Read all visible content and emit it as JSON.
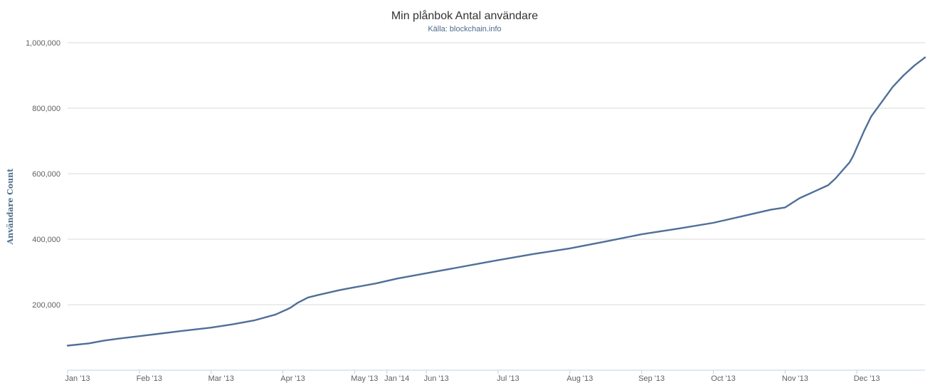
{
  "chart_data": {
    "type": "line",
    "title": "Min plånbok Antal användare",
    "subtitle": "Källa: blockchain.info",
    "xlabel": "",
    "ylabel": "Användare Count",
    "ylim": [
      0,
      1000000
    ],
    "yticks": [
      200000,
      400000,
      600000,
      800000,
      1000000
    ],
    "ytick_labels": [
      "200,000",
      "400,000",
      "600,000",
      "800,000",
      "1,000,000"
    ],
    "x_unit": "month of 2013",
    "xlim": [
      0,
      11.95
    ],
    "xticks": [
      {
        "label": "Jan '13",
        "value": 0
      },
      {
        "label": "Feb '13",
        "value": 1
      },
      {
        "label": "Mar '13",
        "value": 2
      },
      {
        "label": "Apr '13",
        "value": 3
      },
      {
        "label": "May '13",
        "value": 4
      },
      {
        "label": "Jan '14",
        "value": 4.45
      },
      {
        "label": "Jun '13",
        "value": 5
      },
      {
        "label": "Jul '13",
        "value": 6
      },
      {
        "label": "Aug '13",
        "value": 7
      },
      {
        "label": "Sep '13",
        "value": 8
      },
      {
        "label": "Oct '13",
        "value": 9
      },
      {
        "label": "Nov '13",
        "value": 10
      },
      {
        "label": "Dec '13",
        "value": 11
      }
    ],
    "grid": true,
    "legend": "none",
    "colors": {
      "series": "#4f6f98",
      "title": "#333333",
      "subtitle": "#4d6b8a",
      "axis_title": "#4d6b8a"
    },
    "series": [
      {
        "x": [
          0,
          0.3,
          0.5,
          0.7,
          1,
          1.3,
          1.6,
          2,
          2.3,
          2.6,
          2.9,
          3.1,
          3.2,
          3.35,
          3.5,
          3.8,
          4,
          4.3,
          4.6,
          5,
          5.4,
          5.8,
          6,
          6.5,
          7,
          7.5,
          8,
          8.5,
          9,
          9.4,
          9.8,
          10,
          10.2,
          10.4,
          10.6,
          10.7,
          10.8,
          10.9,
          10.95,
          11,
          11.1,
          11.2,
          11.3,
          11.4,
          11.5,
          11.65,
          11.8,
          11.95
        ],
        "y": [
          75000,
          82000,
          90000,
          96000,
          104000,
          112000,
          120000,
          130000,
          140000,
          152000,
          170000,
          190000,
          205000,
          222000,
          230000,
          245000,
          253000,
          265000,
          280000,
          296000,
          312000,
          328000,
          336000,
          355000,
          372000,
          393000,
          415000,
          432000,
          450000,
          470000,
          490000,
          497000,
          525000,
          545000,
          565000,
          585000,
          610000,
          635000,
          655000,
          680000,
          730000,
          775000,
          805000,
          835000,
          865000,
          900000,
          930000,
          955000
        ]
      }
    ]
  }
}
